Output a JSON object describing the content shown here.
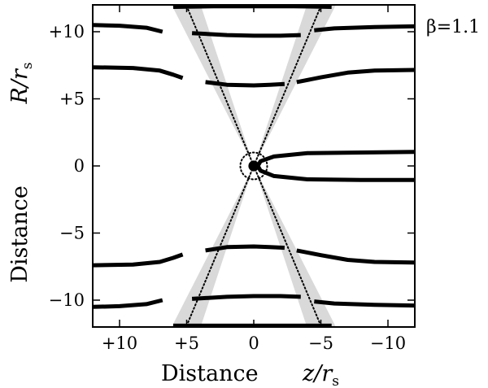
{
  "chart_data": {
    "type": "line",
    "xlim": [
      12,
      -12
    ],
    "ylim": [
      -12,
      12
    ],
    "xticks": [
      10,
      5,
      0,
      -5,
      -10
    ],
    "xtick_labels": [
      "+10",
      "+5",
      "0",
      "−5",
      "−10"
    ],
    "yticks": [
      10,
      5,
      0,
      -5,
      -10
    ],
    "ytick_labels": [
      "+10",
      "+5",
      "0",
      "−5",
      "−10"
    ],
    "xlabel": "Distance",
    "xlabel_unit": "z/r",
    "xlabel_unit_sub": "s",
    "ylabel": "Distance",
    "ylabel_unit": "R/r",
    "ylabel_unit_sub": "s",
    "annotation": "β=1.1",
    "grid": false,
    "central_body": {
      "x": 0,
      "y": 0,
      "radius": 0.4
    },
    "dotted_circle": {
      "x": 0,
      "y": 0,
      "radius": 1.0
    },
    "cone_half_slope": 0.42,
    "cone_band_width": 0.09,
    "series": [
      {
        "values": [
          [
            12.0,
            7.35
          ],
          [
            9.0,
            7.3
          ],
          [
            7.0,
            7.1
          ],
          [
            6.0,
            6.8
          ],
          [
            5.3,
            6.55
          ]
        ]
      },
      {
        "values": [
          [
            3.6,
            6.25
          ],
          [
            2.0,
            6.05
          ],
          [
            0.0,
            6.0
          ],
          [
            -1.2,
            6.05
          ],
          [
            -2.3,
            6.1
          ]
        ]
      },
      {
        "values": [
          [
            -3.2,
            6.25
          ],
          [
            -5.0,
            6.6
          ],
          [
            -7.0,
            6.95
          ],
          [
            -9.0,
            7.1
          ],
          [
            -12.0,
            7.15
          ]
        ]
      },
      {
        "values": [
          [
            12.0,
            10.5
          ],
          [
            10.0,
            10.45
          ],
          [
            8.0,
            10.3
          ],
          [
            6.8,
            10.0
          ]
        ]
      },
      {
        "values": [
          [
            4.6,
            9.9
          ],
          [
            2.0,
            9.75
          ],
          [
            0.0,
            9.7
          ],
          [
            -2.0,
            9.7
          ],
          [
            -3.5,
            9.75
          ]
        ]
      },
      {
        "values": [
          [
            -4.5,
            10.1
          ],
          [
            -6.0,
            10.25
          ],
          [
            -9.0,
            10.35
          ],
          [
            -12.0,
            10.4
          ]
        ]
      },
      {
        "values": [
          [
            6.0,
            11.85
          ],
          [
            3.0,
            11.9
          ],
          [
            0.0,
            11.9
          ],
          [
            -3.0,
            11.9
          ],
          [
            -5.8,
            11.85
          ]
        ]
      },
      {
        "values": [
          [
            12.0,
            -7.4
          ],
          [
            9.0,
            -7.35
          ],
          [
            7.0,
            -7.15
          ],
          [
            6.0,
            -6.85
          ],
          [
            5.3,
            -6.6
          ]
        ]
      },
      {
        "values": [
          [
            3.6,
            -6.3
          ],
          [
            2.0,
            -6.05
          ],
          [
            0.0,
            -6.0
          ],
          [
            -1.2,
            -6.05
          ],
          [
            -2.3,
            -6.1
          ]
        ]
      },
      {
        "values": [
          [
            -3.2,
            -6.3
          ],
          [
            -5.0,
            -6.65
          ],
          [
            -7.0,
            -7.0
          ],
          [
            -9.0,
            -7.15
          ],
          [
            -12.0,
            -7.2
          ]
        ]
      },
      {
        "values": [
          [
            12.0,
            -10.5
          ],
          [
            10.0,
            -10.45
          ],
          [
            8.0,
            -10.3
          ],
          [
            6.8,
            -10.0
          ]
        ]
      },
      {
        "values": [
          [
            4.6,
            -9.9
          ],
          [
            2.0,
            -9.75
          ],
          [
            0.0,
            -9.7
          ],
          [
            -2.0,
            -9.7
          ],
          [
            -3.5,
            -9.75
          ]
        ]
      },
      {
        "values": [
          [
            -4.5,
            -10.1
          ],
          [
            -6.0,
            -10.25
          ],
          [
            -9.0,
            -10.35
          ],
          [
            -12.0,
            -10.4
          ]
        ]
      },
      {
        "values": [
          [
            6.0,
            -11.9
          ],
          [
            3.0,
            -11.9
          ],
          [
            0.0,
            -11.9
          ],
          [
            -3.0,
            -11.9
          ],
          [
            -5.8,
            -11.9
          ]
        ]
      },
      {
        "values": [
          [
            -12.0,
            1.05
          ],
          [
            -8.0,
            1.0
          ],
          [
            -4.0,
            0.95
          ],
          [
            -1.5,
            0.7
          ],
          [
            -0.5,
            0.35
          ],
          [
            -0.3,
            0.0
          ],
          [
            -0.5,
            -0.35
          ],
          [
            -1.5,
            -0.75
          ],
          [
            -4.0,
            -1.0
          ],
          [
            -8.0,
            -1.05
          ],
          [
            -12.0,
            -1.05
          ]
        ]
      }
    ]
  }
}
